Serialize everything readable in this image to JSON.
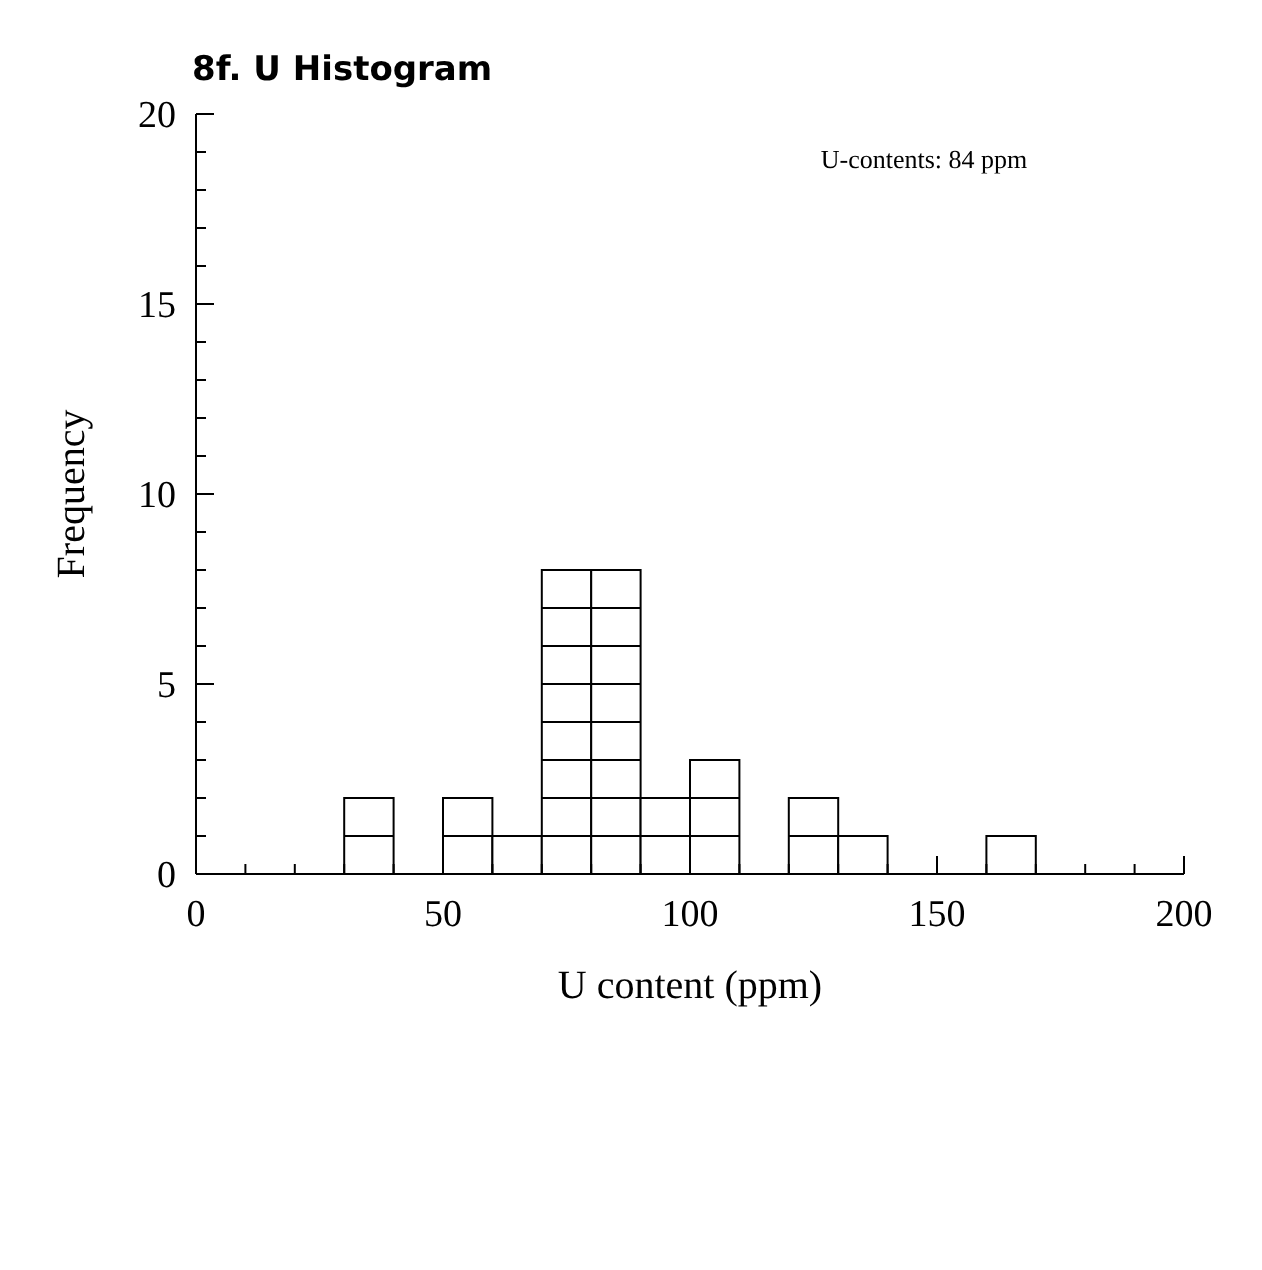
{
  "chart_data": {
    "type": "histogram",
    "title": "8f. U Histogram",
    "xlabel": "U content (ppm)",
    "ylabel": "Frequency",
    "bins": [
      30,
      40,
      50,
      60,
      70,
      80,
      90,
      100,
      110,
      120,
      130,
      140,
      150,
      160,
      170
    ],
    "values": [
      2,
      0,
      2,
      1,
      8,
      8,
      2,
      3,
      0,
      2,
      1,
      0,
      0,
      1
    ],
    "color": "#ffffff",
    "xlim": [
      0,
      200
    ],
    "xticks": [
      0,
      {
        "value": 10,
        "label": null
      },
      {
        "value": 20,
        "label": null
      },
      {
        "value": 30,
        "label": null
      },
      {
        "value": 40,
        "label": null
      },
      50,
      {
        "value": 60,
        "label": null
      },
      {
        "value": 70,
        "label": null
      },
      {
        "value": 80,
        "label": null
      },
      {
        "value": 90,
        "label": null
      },
      100,
      {
        "value": 110,
        "label": null
      },
      {
        "value": 120,
        "label": null
      },
      {
        "value": 130,
        "label": null
      },
      {
        "value": 140,
        "label": null
      },
      150,
      {
        "value": 160,
        "label": null
      },
      {
        "value": 170,
        "label": null
      },
      {
        "value": 180,
        "label": null
      },
      {
        "value": 190,
        "label": null
      },
      200
    ],
    "ylim": [
      0,
      20
    ],
    "yticks": [
      0,
      {
        "value": 1,
        "label": null
      },
      {
        "value": 2,
        "label": null
      },
      {
        "value": 3,
        "label": null
      },
      {
        "value": 4,
        "label": null
      },
      5,
      {
        "value": 6,
        "label": null
      },
      {
        "value": 7,
        "label": null
      },
      {
        "value": 8,
        "label": null
      },
      {
        "value": 9,
        "label": null
      },
      10,
      {
        "value": 11,
        "label": null
      },
      {
        "value": 12,
        "label": null
      },
      {
        "value": 13,
        "label": null
      },
      {
        "value": 14,
        "label": null
      },
      15,
      {
        "value": 16,
        "label": null
      },
      {
        "value": 17,
        "label": null
      },
      {
        "value": 18,
        "label": null
      },
      {
        "value": 19,
        "label": null
      },
      20
    ],
    "annotations": [
      "U-contents: 84 ppm"
    ]
  }
}
